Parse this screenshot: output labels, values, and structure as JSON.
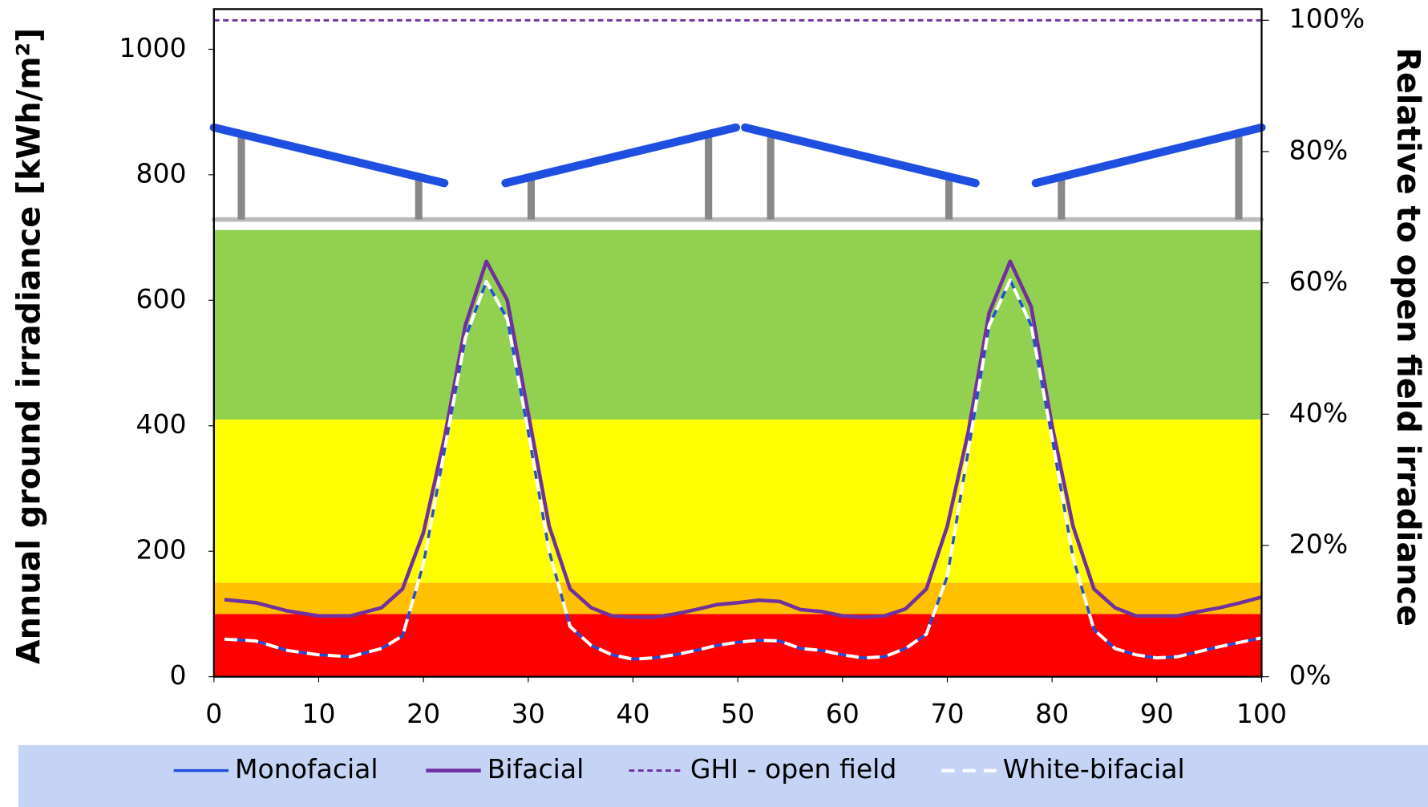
{
  "chart_data": {
    "type": "line",
    "y_label": "Annual ground irradiance [kWh/m²]",
    "y2_label": "Relative to open field irradiance",
    "xlim": [
      0,
      100
    ],
    "xticks": [
      0,
      10,
      20,
      30,
      40,
      50,
      60,
      70,
      80,
      90,
      100
    ],
    "ylim": [
      0,
      1064
    ],
    "yticks": [
      0,
      200,
      400,
      600,
      800,
      1000
    ],
    "y2lim": [
      0,
      101.7
    ],
    "y2ticks": [
      {
        "value": 0,
        "label": "0%"
      },
      {
        "value": 20,
        "label": "20%"
      },
      {
        "value": 40,
        "label": "40%"
      },
      {
        "value": 60,
        "label": "60%"
      },
      {
        "value": 80,
        "label": "80%"
      },
      {
        "value": 100,
        "label": "100%"
      }
    ],
    "bands": [
      {
        "from": 0,
        "to": 100,
        "color": "#ff0000"
      },
      {
        "from": 100,
        "to": 150,
        "color": "#ffc000"
      },
      {
        "from": 150,
        "to": 410,
        "color": "#ffff00"
      },
      {
        "from": 410,
        "to": 712,
        "color": "#92d050"
      }
    ],
    "x": [
      1,
      4,
      7,
      10,
      13,
      16,
      18,
      20,
      22,
      24,
      26,
      28,
      30,
      32,
      34,
      36,
      38,
      40,
      42,
      44,
      46,
      48,
      50,
      52,
      54,
      56,
      58,
      60,
      62,
      64,
      66,
      68,
      70,
      72,
      74,
      76,
      78,
      80,
      82,
      84,
      86,
      88,
      90,
      92,
      94,
      96,
      98,
      100
    ],
    "series": [
      {
        "name": "Monofacial",
        "color": "#1f4fe0",
        "dash": "none",
        "width": 3,
        "values": [
          60,
          57,
          42,
          35,
          32,
          45,
          65,
          180,
          360,
          540,
          630,
          570,
          390,
          200,
          80,
          50,
          35,
          28,
          30,
          35,
          42,
          50,
          55,
          58,
          57,
          45,
          42,
          35,
          30,
          32,
          45,
          68,
          160,
          360,
          560,
          632,
          560,
          380,
          190,
          75,
          45,
          35,
          30,
          32,
          40,
          48,
          55,
          62
        ]
      },
      {
        "name": "Bifacial",
        "color": "#7030a0",
        "dash": "none",
        "width": 4,
        "values": [
          123,
          118,
          105,
          97,
          97,
          110,
          140,
          230,
          380,
          560,
          662,
          600,
          420,
          240,
          140,
          110,
          97,
          95,
          95,
          100,
          107,
          115,
          118,
          122,
          120,
          107,
          104,
          97,
          95,
          97,
          108,
          140,
          240,
          390,
          580,
          662,
          590,
          400,
          240,
          140,
          110,
          97,
          97,
          97,
          104,
          110,
          118,
          127
        ]
      },
      {
        "name": "GHI - open field",
        "color": "#7030a0",
        "dash": "6 4",
        "width": 2.5,
        "axis": "y2",
        "x": [
          0,
          100
        ],
        "values": [
          100,
          100
        ]
      },
      {
        "name": "White-bifacial",
        "color": "#ffffff",
        "dash": "14 9",
        "width": 3.5,
        "values": [
          60,
          57,
          42,
          35,
          32,
          45,
          65,
          180,
          360,
          540,
          630,
          570,
          390,
          200,
          80,
          50,
          35,
          28,
          30,
          35,
          42,
          50,
          55,
          58,
          57,
          45,
          42,
          35,
          30,
          32,
          45,
          68,
          160,
          360,
          560,
          632,
          560,
          380,
          190,
          75,
          45,
          35,
          30,
          32,
          40,
          48,
          55,
          62
        ]
      }
    ]
  }
}
